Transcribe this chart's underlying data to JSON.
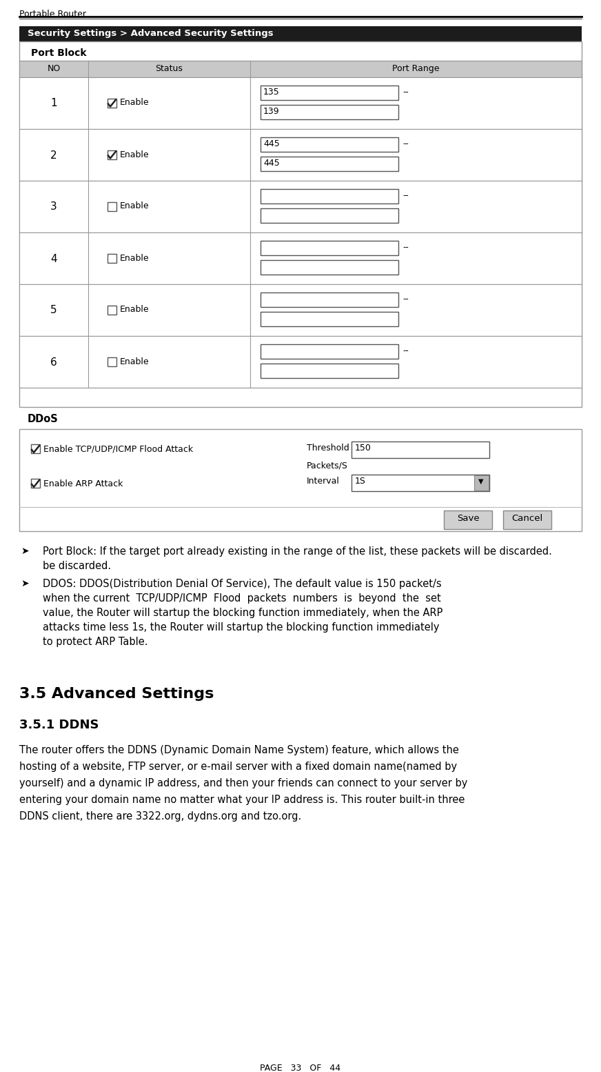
{
  "page_title": "Portable Router",
  "page_number": "PAGE   33   OF   44",
  "panel_title": "Security Settings > Advanced Security Settings",
  "port_block_title": "Port Block",
  "table_headers": [
    "NO",
    "Status",
    "Port Range"
  ],
  "rows": [
    {
      "no": "1",
      "checked": true,
      "val1": "135",
      "val2": "139"
    },
    {
      "no": "2",
      "checked": true,
      "val1": "445",
      "val2": "445"
    },
    {
      "no": "3",
      "checked": false,
      "val1": "",
      "val2": ""
    },
    {
      "no": "4",
      "checked": false,
      "val1": "",
      "val2": ""
    },
    {
      "no": "5",
      "checked": false,
      "val1": "",
      "val2": ""
    },
    {
      "no": "6",
      "checked": false,
      "val1": "",
      "val2": ""
    }
  ],
  "ddos_title": "DDoS",
  "ddos_check1": "Enable TCP/UDP/ICMP Flood Attack",
  "ddos_check2": "Enable ARP Attack",
  "threshold_label": "Threshold",
  "threshold_value": "150",
  "packets_label": "Packets/S",
  "interval_label": "Interval",
  "interval_value": "1S",
  "btn_save": "Save",
  "btn_cancel": "Cancel",
  "bullet1_marker": "➤",
  "bullet1_bold": "Port Block:",
  "bullet1_text": " If the target port already existing in the range of the list, these packets will be discarded.",
  "bullet2_marker": "➤",
  "bullet2_bold": "DDOS:",
  "bullet2_text_line1": " DDOS(Distribution Denial Of Service), The default value is 150 packet/s",
  "bullet2_text_line2": "when the current  TCP/UDP/ICMP  Flood  packets  numbers  is  beyond  the  set",
  "bullet2_text_line3": "value, the Router will startup the blocking function immediately, when the ARP",
  "bullet2_text_line4": "attacks time less 1s, the Router will startup the blocking function immediately",
  "bullet2_text_line5": "to protect ARP Table.",
  "section_title": "3.5 Advanced Settings",
  "subsection_title": "3.5.1 DDNS",
  "body_line1": "The router offers the DDNS (Dynamic Domain Name System) feature, which allows the",
  "body_line2": "hosting of a website, FTP server, or e-mail server with a fixed domain name(named by",
  "body_line3": "yourself) and a dynamic IP address, and then your friends can connect to your server by",
  "body_line4": "entering your domain name no matter what your IP address is. This router built-in three",
  "body_line5": "DDNS client, there are 3322.org, dydns.org and tzo.org.",
  "bg_color": "#ffffff",
  "panel_bg": "#1a1a1a",
  "table_border_color": "#999999",
  "header_bg": "#c8c8c8"
}
